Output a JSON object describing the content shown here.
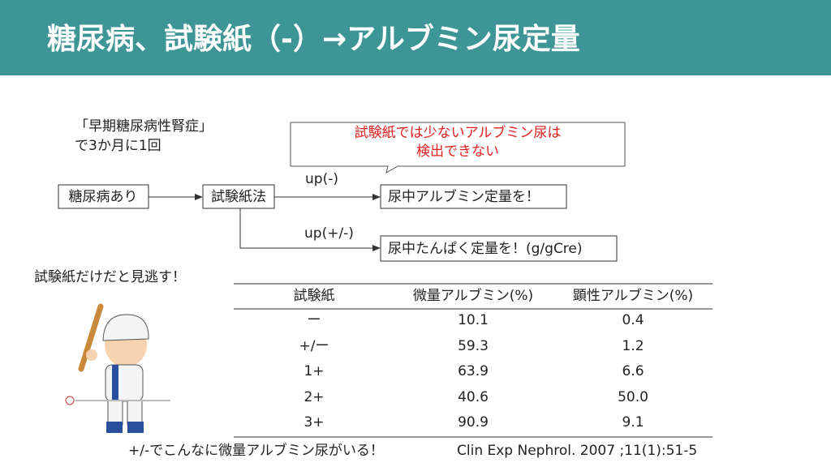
{
  "header": {
    "title": "糖尿病、試験紙（-）→アルブミン尿定量"
  },
  "note": {
    "lines": [
      "「早期糖尿病性腎症」",
      "で3か月に1回"
    ]
  },
  "callout": {
    "lines": [
      "試験紙では少ないアルブミン尿は",
      "検出できない"
    ]
  },
  "flow": {
    "nodes": [
      "糖尿病あり",
      "試験紙法",
      "尿中アルブミン定量を！",
      "尿中たんぱく定量を！(g/gCre)"
    ],
    "edges": [
      "up(-)",
      "up(+/-)"
    ]
  },
  "miss_note": "試験紙だけだと見逃す！",
  "table": {
    "header": [
      "試験紙",
      "微量アルブミン(%)",
      "顕性アルブミン(%)"
    ],
    "rows": [
      [
        "ー",
        "10.1",
        "0.4"
      ],
      [
        "+/ー",
        "59.3",
        "1.2"
      ],
      [
        "1+",
        "63.9",
        "6.6"
      ],
      [
        "2+",
        "40.6",
        "50.0"
      ],
      [
        "3+",
        "90.9",
        "9.1"
      ]
    ]
  },
  "footer_note": "+/-でこんなに微量アルブミン尿がいる！",
  "citation": "Clin Exp Nephrol. 2007 ;11(1):51-5"
}
